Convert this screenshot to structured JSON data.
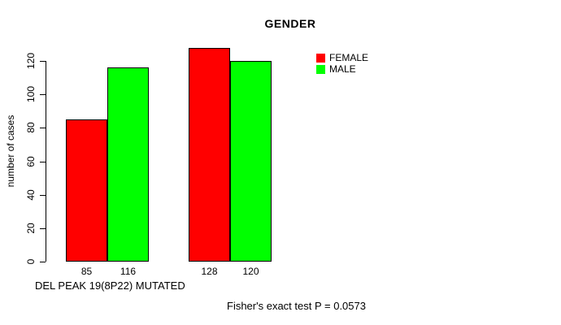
{
  "chart_data": {
    "type": "bar",
    "title": "GENDER",
    "ylabel": "number of cases",
    "xlabel": "DEL PEAK 19(8P22) MUTATED",
    "annotation": "Fisher's exact test P = 0.0573",
    "series": [
      {
        "name": "FEMALE",
        "color": "#ff0000",
        "values": [
          85,
          128
        ]
      },
      {
        "name": "MALE",
        "color": "#00ff00",
        "values": [
          116,
          120
        ]
      }
    ],
    "bar_value_labels": [
      [
        "85",
        "116"
      ],
      [
        "128",
        "120"
      ]
    ],
    "yticks": [
      0,
      20,
      40,
      60,
      80,
      100,
      120
    ],
    "ylim": [
      0,
      128
    ],
    "grid": false,
    "legend_position": "top-right",
    "bar_border_color": "#000000"
  }
}
